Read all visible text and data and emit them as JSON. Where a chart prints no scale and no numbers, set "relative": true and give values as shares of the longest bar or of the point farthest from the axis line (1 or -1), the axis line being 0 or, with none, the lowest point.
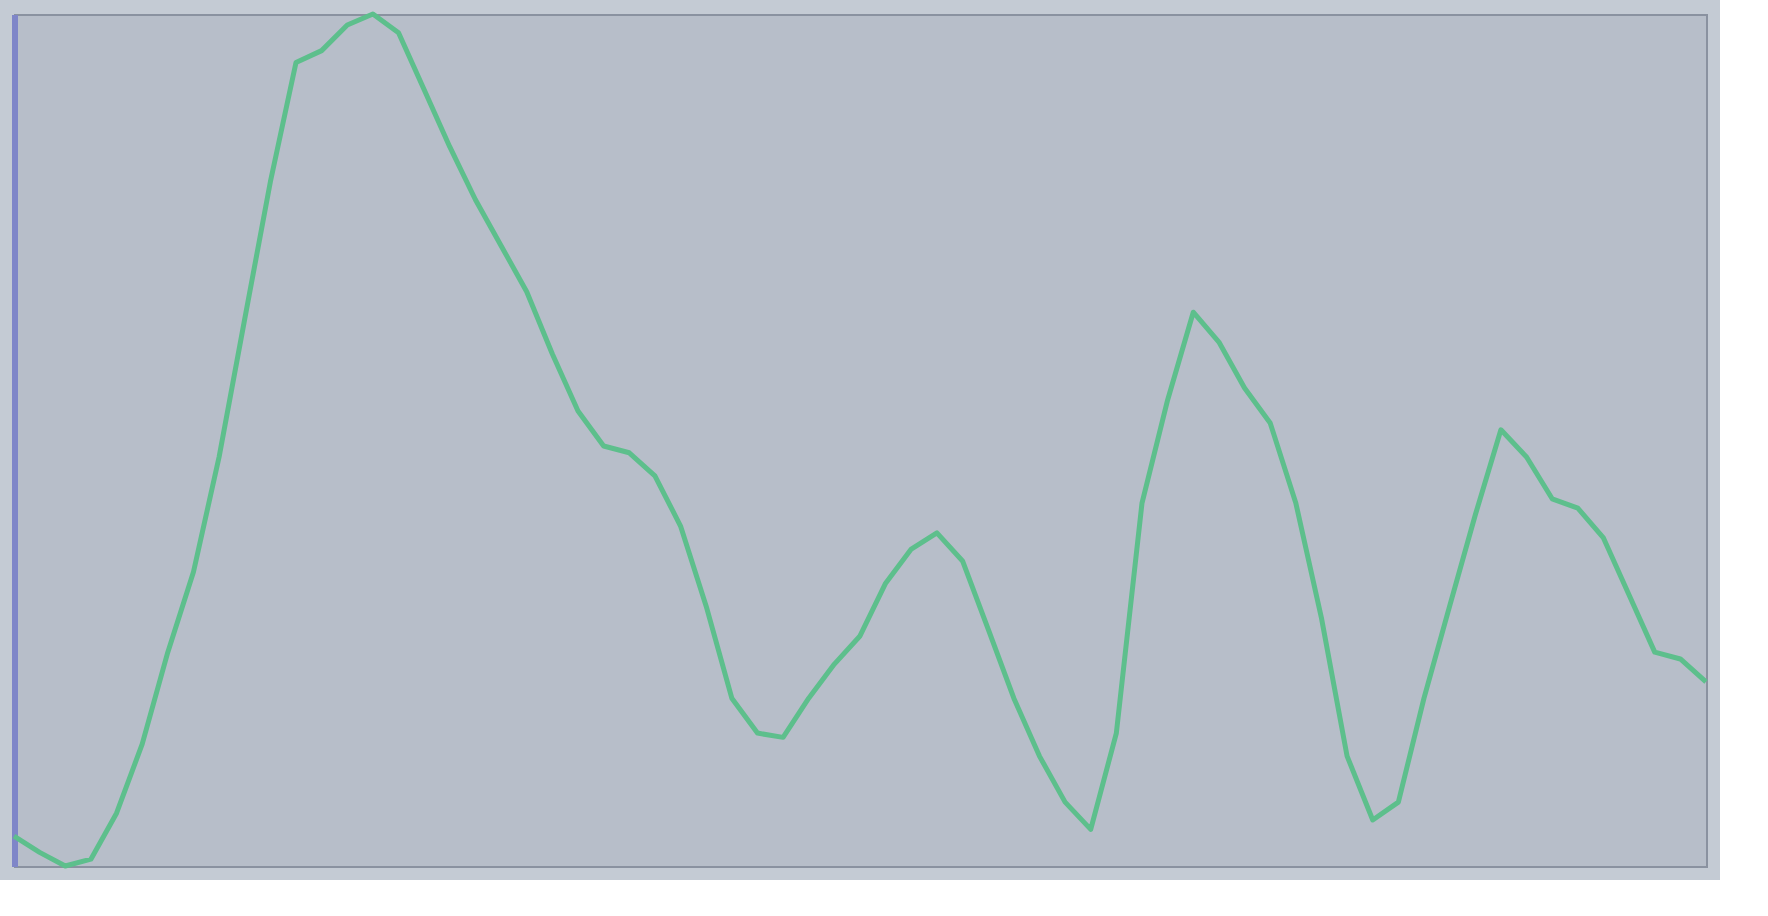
{
  "chart_data": {
    "type": "line",
    "relative": true,
    "tick_labels": false,
    "line_style": "solid",
    "categories": [
      null,
      null,
      null,
      null,
      null,
      null,
      null,
      null,
      null,
      null,
      null,
      null,
      null,
      null,
      null,
      null,
      null,
      null,
      null,
      null,
      null,
      null,
      null,
      null,
      null,
      null,
      null,
      null,
      null,
      null,
      null,
      null,
      null,
      null,
      null,
      null,
      null,
      null,
      null,
      null,
      null,
      null,
      null,
      null,
      null,
      null,
      null,
      null,
      null,
      null,
      null,
      null,
      null,
      null,
      null,
      null,
      null,
      null,
      null,
      null,
      null,
      null,
      null,
      null,
      null,
      null,
      null
    ],
    "series": [
      {
        "color": "#5dbf8c",
        "values": [
          0.035,
          0.016,
          0,
          0.008,
          0.062,
          0.143,
          0.251,
          0.345,
          0.48,
          0.642,
          0.803,
          0.943,
          0.957,
          0.987,
          1,
          0.978,
          0.911,
          0.844,
          0.782,
          0.728,
          0.674,
          0.601,
          0.534,
          0.493,
          0.485,
          0.458,
          0.399,
          0.305,
          0.197,
          0.156,
          0.151,
          0.197,
          0.237,
          0.27,
          0.332,
          0.372,
          0.391,
          0.358,
          0.278,
          0.197,
          0.129,
          0.075,
          0.043,
          0.156,
          0.426,
          0.547,
          0.65,
          0.615,
          0.561,
          0.52,
          0.426,
          0.291,
          0.129,
          0.054,
          0.075,
          0.197,
          0.305,
          0.412,
          0.512,
          0.48,
          0.431,
          0.42,
          0.385,
          0.318,
          0.251,
          0.243,
          0.216
        ]
      }
    ]
  }
}
